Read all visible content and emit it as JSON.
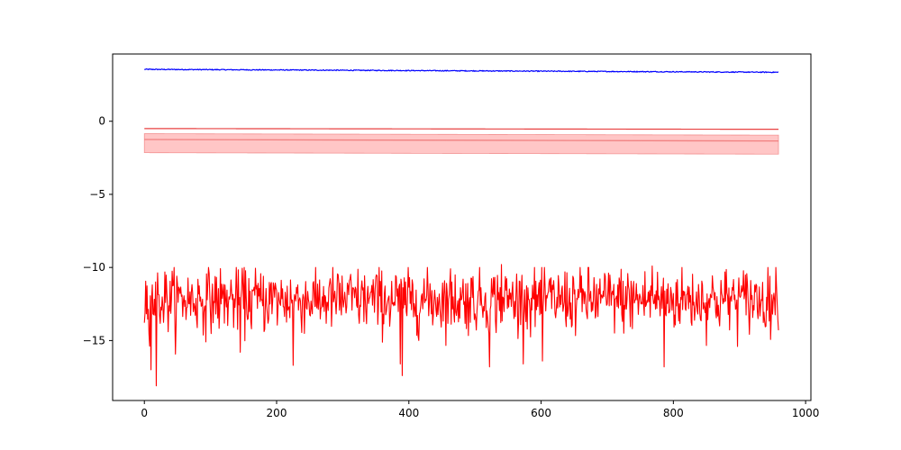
{
  "chart_data": {
    "type": "line",
    "title": "",
    "xlabel": "",
    "ylabel": "",
    "xlim": [
      -48,
      1008
    ],
    "ylim": [
      -19.1,
      4.6
    ],
    "x_ticks": [
      0,
      200,
      400,
      600,
      800,
      1000
    ],
    "y_ticks": [
      0,
      -5,
      -10,
      -15
    ],
    "grid": false,
    "legend": "none",
    "n_points": 960,
    "series": [
      {
        "kind": "line",
        "color": "#0000ff",
        "x_start": 0,
        "x_end": 959,
        "y_start": 3.55,
        "y_end": 3.35,
        "noise_amplitude": 0.03
      },
      {
        "kind": "line",
        "color": "#e84040",
        "x_start": 0,
        "x_end": 959,
        "y_start": -0.5,
        "y_end": -0.55
      },
      {
        "kind": "band",
        "color": "#f08080",
        "fill": "#ffb3b3",
        "x_start": 0,
        "x_end": 959,
        "center_start": -1.25,
        "center_end": -1.35,
        "upper_start": -0.85,
        "upper_end": -0.95,
        "lower_start": -2.15,
        "lower_end": -2.25
      },
      {
        "kind": "noisy-line",
        "color": "#ff0000",
        "x_start": 0,
        "x_end": 959,
        "mean": -12.2,
        "std": 1.1,
        "min": -18.1,
        "max": -9.8,
        "spikes": [
          {
            "x": 10,
            "y": -17.0
          },
          {
            "x": 18,
            "y": -18.1
          },
          {
            "x": 145,
            "y": -15.8
          },
          {
            "x": 225,
            "y": -16.7
          },
          {
            "x": 387,
            "y": -16.6
          },
          {
            "x": 390,
            "y": -17.4
          },
          {
            "x": 522,
            "y": -16.8
          },
          {
            "x": 602,
            "y": -16.4
          },
          {
            "x": 786,
            "y": -16.8
          },
          {
            "x": 540,
            "y": -9.8
          },
          {
            "x": 768,
            "y": -9.9
          }
        ]
      }
    ]
  }
}
